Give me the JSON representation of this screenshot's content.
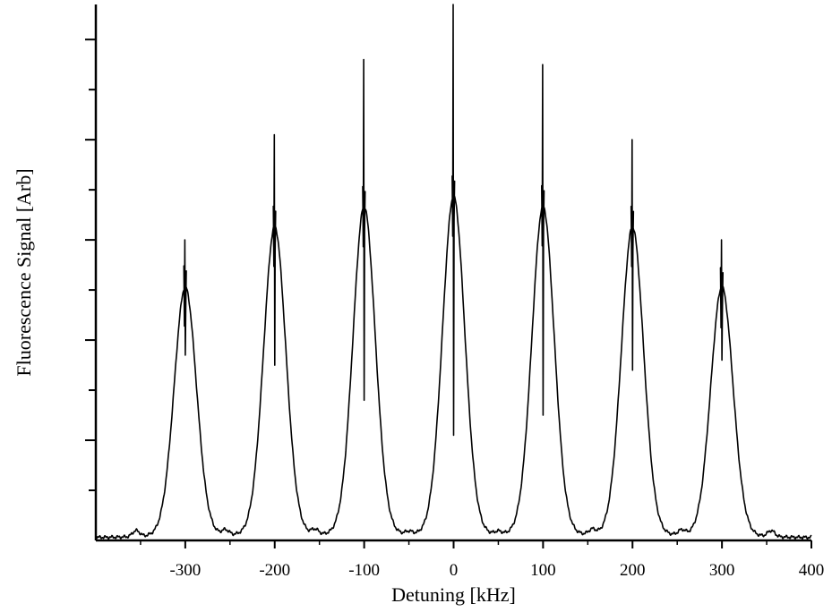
{
  "chart_data": {
    "type": "line",
    "title": "",
    "xlabel": "Detuning [kHz]",
    "ylabel": "Fluorescence Signal [Arb]",
    "xlim": [
      -400,
      400
    ],
    "ylim": [
      0,
      1.07
    ],
    "x_ticks": [
      -300,
      -200,
      -100,
      0,
      100,
      200,
      300,
      400
    ],
    "x_minor_ticks": [
      -350,
      -250,
      -150,
      -50,
      50,
      150,
      250,
      350
    ],
    "y_ticks": [
      0.1,
      0.2,
      0.3,
      0.4,
      0.5,
      0.6,
      0.7,
      0.8,
      0.9,
      1.0
    ],
    "y_tick_labels_shown": false,
    "grid": false,
    "baseline": 0.005,
    "series": [
      {
        "peaks": [
          {
            "x": -300,
            "height": 0.5,
            "spike_top": 0.6,
            "spike_dip": 0.37
          },
          {
            "x": -200,
            "height": 0.62,
            "spike_top": 0.81,
            "spike_dip": 0.35
          },
          {
            "x": -100,
            "height": 0.66,
            "spike_top": 0.96,
            "spike_dip": 0.28
          },
          {
            "x": 0,
            "height": 0.68,
            "spike_top": 1.07,
            "spike_dip": 0.21
          },
          {
            "x": 100,
            "height": 0.66,
            "spike_top": 0.95,
            "spike_dip": 0.25
          },
          {
            "x": 200,
            "height": 0.62,
            "spike_top": 0.8,
            "spike_dip": 0.34
          },
          {
            "x": 300,
            "height": 0.5,
            "spike_top": 0.6,
            "spike_dip": 0.36
          }
        ],
        "small_bumps": [
          {
            "x": -355,
            "height": 0.012
          },
          {
            "x": -255,
            "height": 0.01
          },
          {
            "x": -155,
            "height": 0.01
          },
          {
            "x": -50,
            "height": 0.006
          },
          {
            "x": 50,
            "height": 0.006
          },
          {
            "x": 155,
            "height": 0.01
          },
          {
            "x": 255,
            "height": 0.01
          },
          {
            "x": 355,
            "height": 0.012
          }
        ],
        "color": "#000000"
      }
    ]
  }
}
